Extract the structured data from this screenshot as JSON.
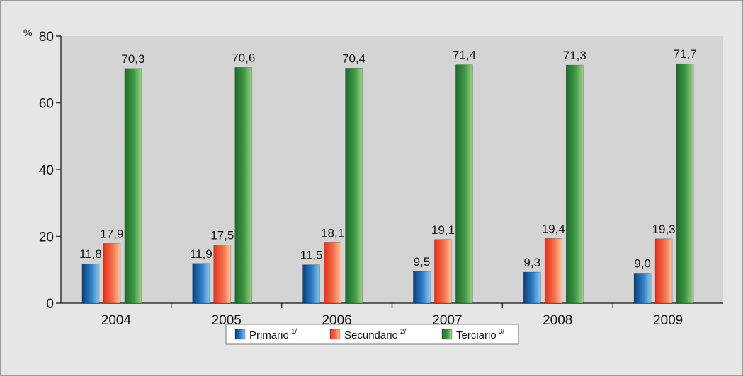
{
  "chart_data": {
    "type": "bar",
    "ylabel": "%",
    "ylim": [
      0,
      80
    ],
    "yticks": [
      "0",
      "20",
      "40",
      "60",
      "80"
    ],
    "categories": [
      "2004",
      "2005",
      "2006",
      "2007",
      "2008",
      "2009"
    ],
    "series": [
      {
        "name": "Primario",
        "note": "1/",
        "color": "#2f7fc8",
        "values": [
          11.8,
          11.9,
          11.5,
          9.5,
          9.3,
          9.0
        ],
        "labels": [
          "11,8",
          "11,9",
          "11,5",
          "9,5",
          "9,3",
          "9,0"
        ]
      },
      {
        "name": "Secundario",
        "note": "2/",
        "color": "#f0603c",
        "values": [
          17.9,
          17.5,
          18.1,
          19.1,
          19.4,
          19.3
        ],
        "labels": [
          "17,9",
          "17,5",
          "18,1",
          "19,1",
          "19,4",
          "19,3"
        ]
      },
      {
        "name": "Terciario",
        "note": "3/",
        "color": "#3f9a45",
        "values": [
          70.3,
          70.6,
          70.4,
          71.4,
          71.3,
          71.7
        ],
        "labels": [
          "70,3",
          "70,6",
          "70,4",
          "71,4",
          "71,3",
          "71,7"
        ]
      }
    ],
    "grid": false,
    "legend_position": "bottom"
  }
}
